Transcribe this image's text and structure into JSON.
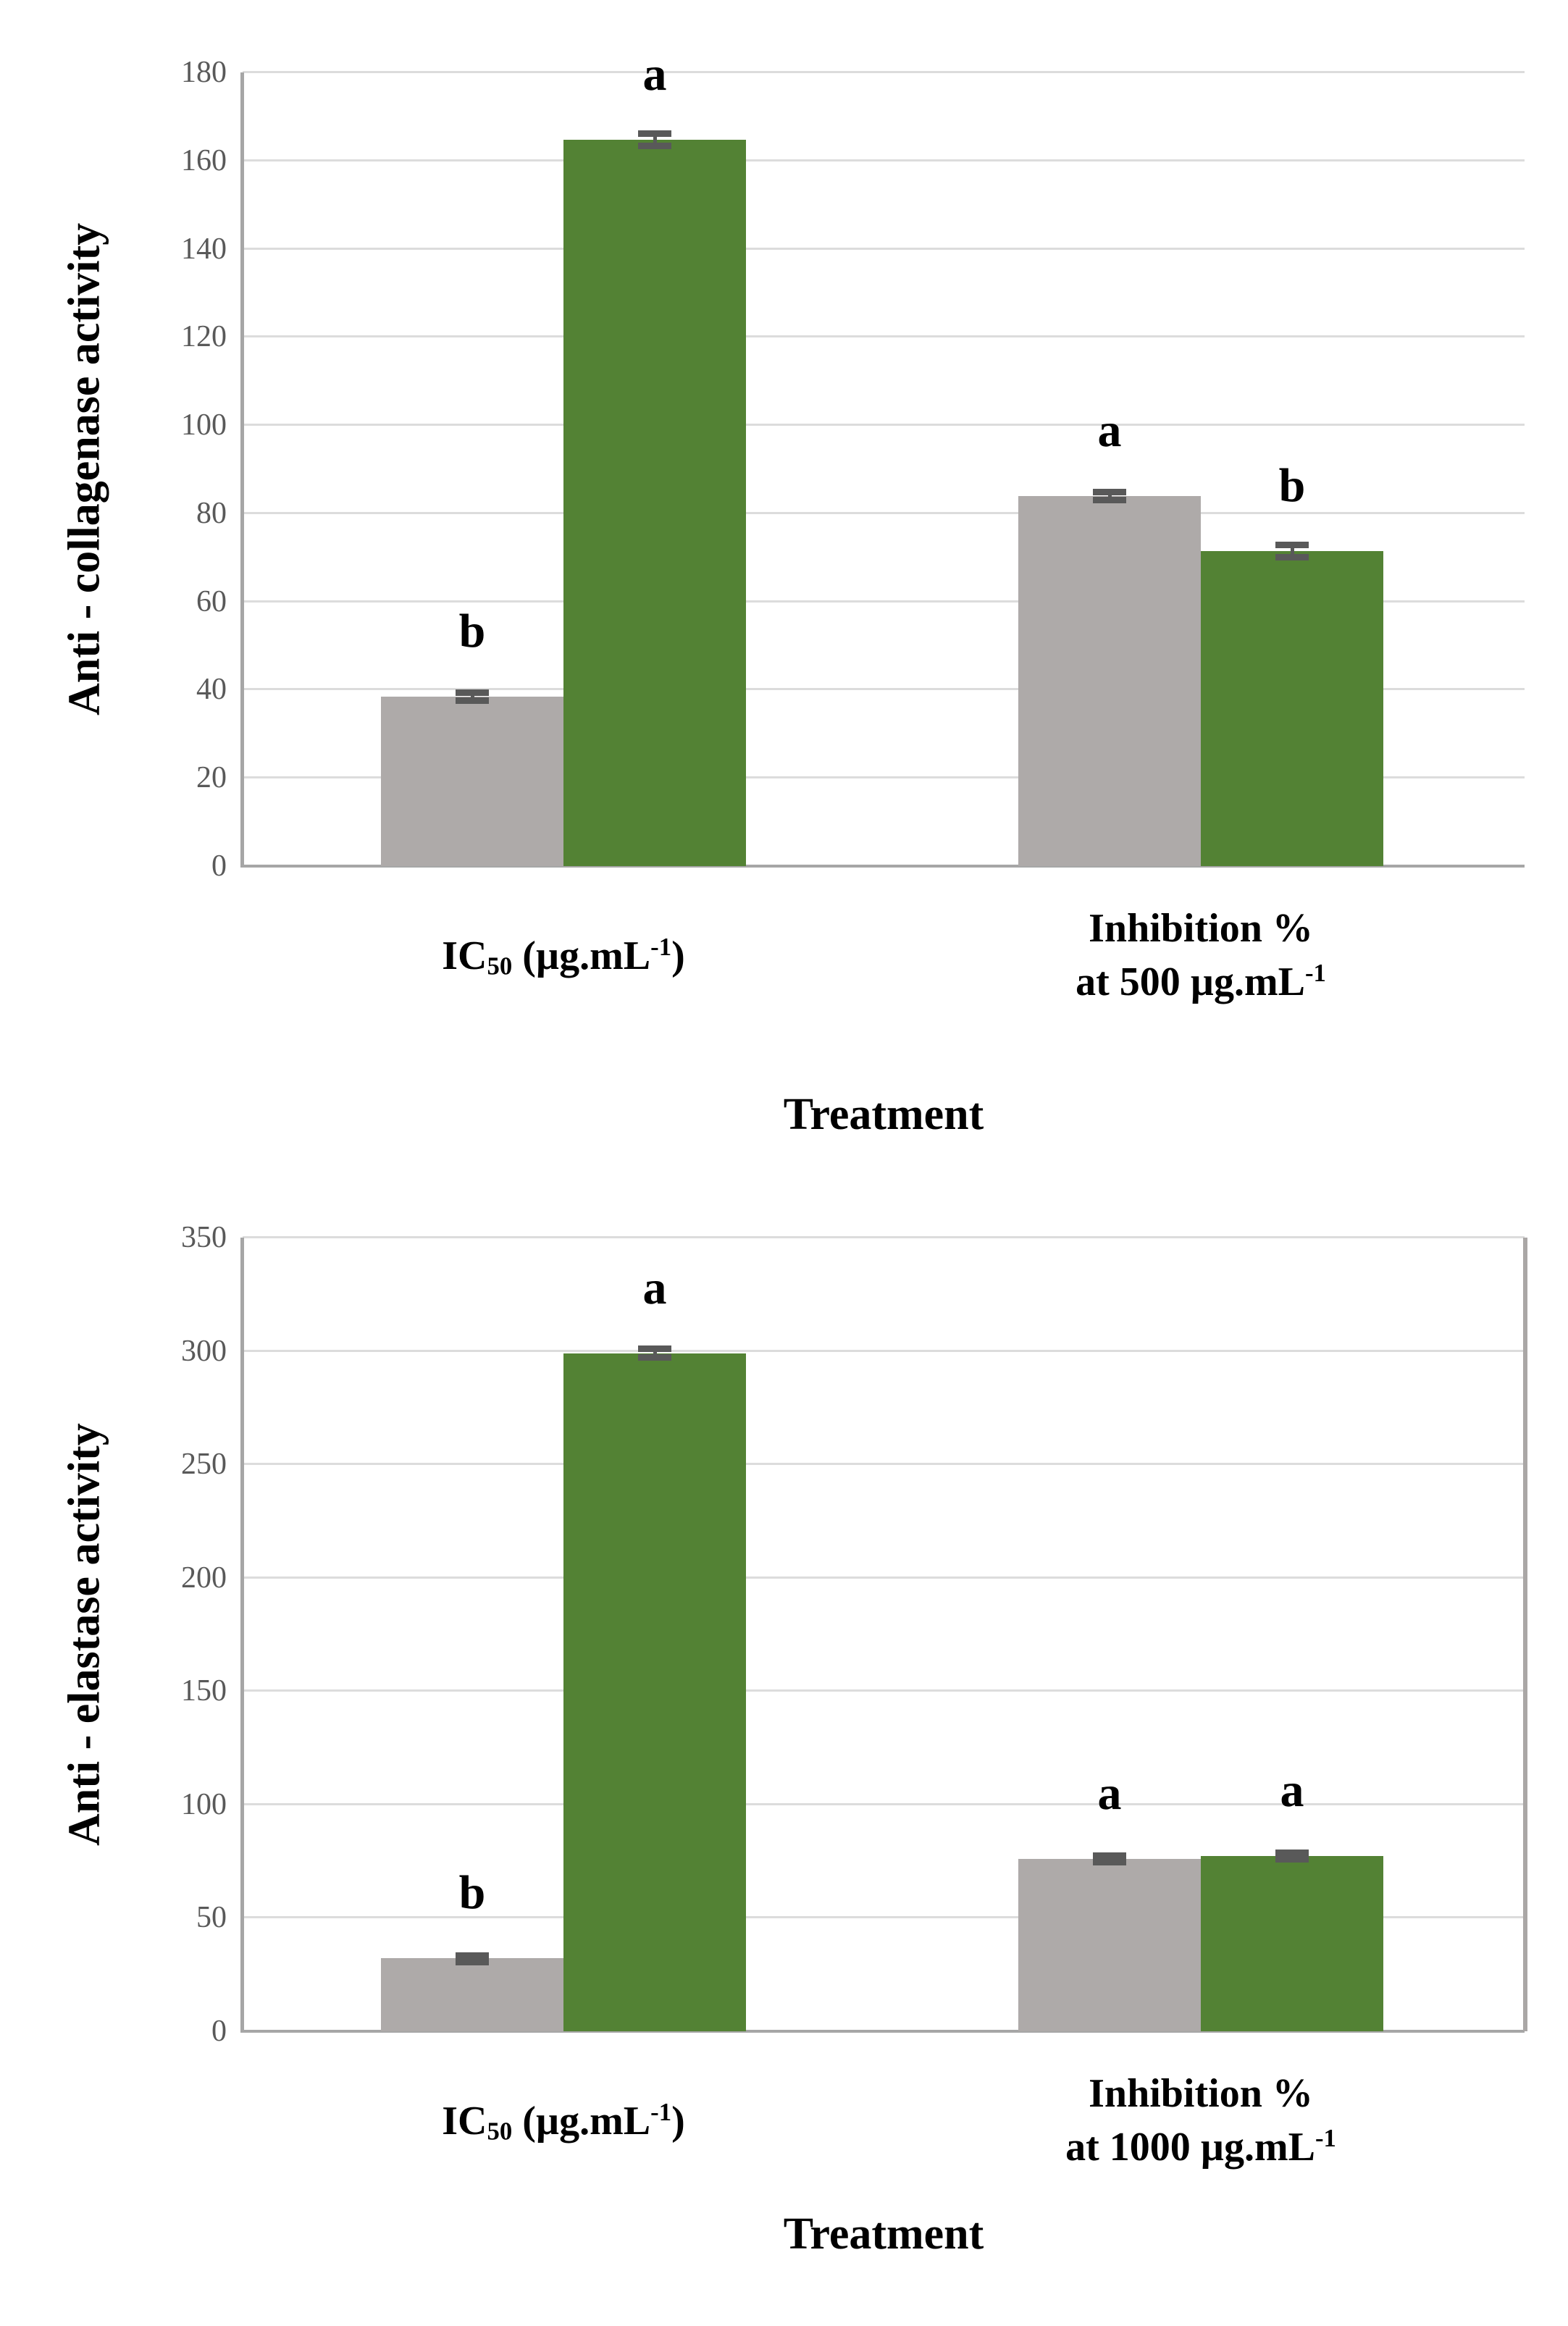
{
  "page": {
    "background": "#ffffff"
  },
  "colors": {
    "bar_gray": "#aeaaa9",
    "bar_green": "#538234",
    "gridline": "#dcdcdc",
    "axis_line": "#a6a6a6",
    "right_border": "#aaa7a6",
    "tick_text": "#595959",
    "error_bar": "#595959",
    "letter_text": "#000000"
  },
  "charts_display": [
    {
      "y_axis_title": "Anti - collagenase activity",
      "x_axis_title": "Treatment",
      "group1_label": {
        "pre": "IC",
        "sub": "50",
        "mid": " (µg.mL",
        "sup": "-1",
        "post": ")"
      },
      "group2_label": {
        "line1": "Inhibition %",
        "line2": "at 500 µg.mL",
        "line2_sup": "-1"
      }
    },
    {
      "y_axis_title": "Anti - elastase activity",
      "x_axis_title": "Treatment",
      "group1_label": {
        "pre": "IC",
        "sub": "50",
        "mid": " (µg.mL",
        "sup": "-1",
        "post": ")"
      },
      "group2_label": {
        "line1": "Inhibition %",
        "line2": "at 1000 µg.mL",
        "line2_sup": "-1"
      }
    }
  ],
  "chart_data": [
    {
      "type": "bar",
      "title": "",
      "ylabel": "Anti - collagenase activity",
      "xlabel": "Treatment",
      "categories": [
        "IC50 (µg.mL-1)",
        "Inhibition % at 500 µg.mL-1"
      ],
      "series": [
        {
          "name": "gray",
          "color": "#aeaaa9",
          "values": [
            38.4,
            83.9
          ],
          "errors": [
            1,
            1
          ],
          "letters": [
            "b",
            "a"
          ]
        },
        {
          "name": "green",
          "color": "#538234",
          "values": [
            164.7,
            71.4
          ],
          "errors": [
            1.5,
            1.5
          ],
          "letters": [
            "a",
            "b"
          ]
        }
      ],
      "ylim": [
        0,
        180
      ],
      "ytick_step": 20,
      "grid": true,
      "legend": "none"
    },
    {
      "type": "bar",
      "title": "",
      "ylabel": "Anti - elastase activity",
      "xlabel": "Treatment",
      "categories": [
        "IC50 (µg.mL-1)",
        "Inhibition % at 1000 µg.mL-1"
      ],
      "series": [
        {
          "name": "gray",
          "color": "#aeaaa9",
          "values": [
            32.4,
            76.0
          ],
          "errors": [
            1,
            1.5
          ],
          "letters": [
            "b",
            "a"
          ]
        },
        {
          "name": "green",
          "color": "#538234",
          "values": [
            299.0,
            77.3
          ],
          "errors": [
            2,
            1.5
          ],
          "letters": [
            "a",
            "a"
          ]
        }
      ],
      "ylim": [
        0,
        350
      ],
      "ytick_step": 50,
      "grid": true,
      "legend": "none"
    }
  ]
}
